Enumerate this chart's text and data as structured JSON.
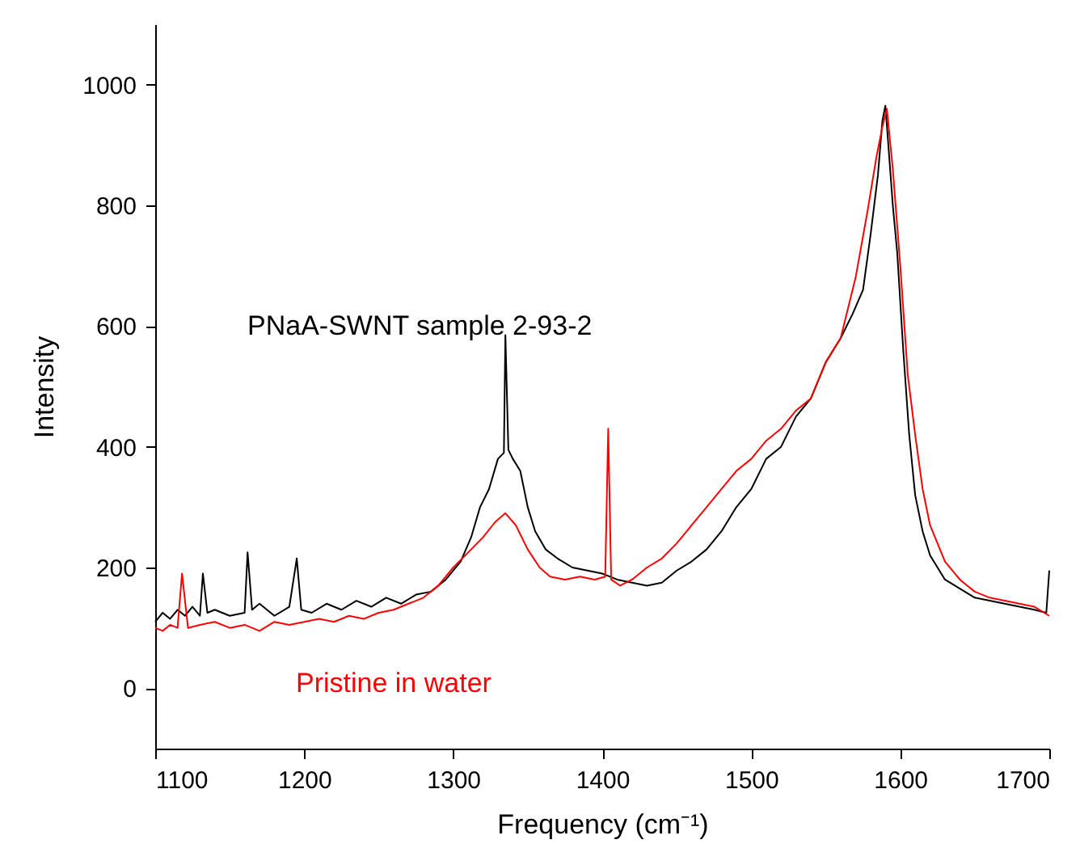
{
  "chart_data": {
    "type": "line",
    "xlabel": "Frequency (cm⁻¹)",
    "ylabel": "Intensity",
    "xlim": [
      1100,
      1700
    ],
    "ylim": [
      -100,
      1100
    ],
    "xticks": [
      1100,
      1200,
      1300,
      1400,
      1500,
      1600,
      1700
    ],
    "yticks": [
      0,
      200,
      400,
      600,
      800,
      1000
    ],
    "grid": false,
    "marker": "none",
    "line_style": "solid",
    "series": [
      {
        "color": "#000000",
        "x": [
          1100,
          1105,
          1110,
          1115,
          1120,
          1125,
          1130,
          1132,
          1135,
          1140,
          1150,
          1160,
          1162,
          1165,
          1170,
          1180,
          1190,
          1195,
          1198,
          1205,
          1215,
          1225,
          1235,
          1245,
          1255,
          1265,
          1275,
          1285,
          1295,
          1305,
          1312,
          1318,
          1324,
          1330,
          1334,
          1335,
          1337,
          1340,
          1345,
          1350,
          1355,
          1362,
          1370,
          1380,
          1390,
          1400,
          1410,
          1420,
          1430,
          1440,
          1450,
          1460,
          1470,
          1480,
          1490,
          1500,
          1510,
          1520,
          1530,
          1540,
          1550,
          1560,
          1568,
          1575,
          1580,
          1585,
          1588,
          1590,
          1592,
          1595,
          1598,
          1602,
          1606,
          1610,
          1615,
          1620,
          1625,
          1630,
          1640,
          1650,
          1660,
          1670,
          1680,
          1690,
          1698,
          1700
        ],
        "values": [
          110,
          125,
          115,
          130,
          120,
          135,
          120,
          190,
          125,
          130,
          120,
          125,
          225,
          130,
          140,
          120,
          135,
          215,
          130,
          125,
          140,
          130,
          145,
          135,
          150,
          140,
          155,
          160,
          180,
          210,
          250,
          300,
          330,
          380,
          390,
          585,
          395,
          380,
          360,
          300,
          260,
          230,
          215,
          200,
          195,
          190,
          180,
          175,
          170,
          175,
          195,
          210,
          230,
          260,
          300,
          330,
          380,
          400,
          450,
          480,
          540,
          580,
          620,
          660,
          750,
          850,
          940,
          965,
          900,
          800,
          720,
          560,
          420,
          320,
          260,
          220,
          200,
          180,
          165,
          150,
          145,
          140,
          135,
          130,
          125,
          195
        ]
      },
      {
        "color": "#ff0000",
        "x": [
          1100,
          1105,
          1110,
          1115,
          1118,
          1122,
          1130,
          1140,
          1150,
          1160,
          1170,
          1180,
          1190,
          1200,
          1210,
          1220,
          1230,
          1240,
          1250,
          1260,
          1270,
          1280,
          1290,
          1300,
          1310,
          1320,
          1328,
          1335,
          1342,
          1350,
          1358,
          1365,
          1375,
          1385,
          1395,
          1402,
          1404,
          1406,
          1412,
          1420,
          1430,
          1440,
          1450,
          1460,
          1470,
          1480,
          1490,
          1500,
          1510,
          1520,
          1530,
          1540,
          1550,
          1560,
          1570,
          1578,
          1584,
          1588,
          1591,
          1595,
          1600,
          1605,
          1610,
          1615,
          1620,
          1630,
          1640,
          1650,
          1660,
          1670,
          1680,
          1690,
          1700
        ],
        "values": [
          100,
          95,
          105,
          100,
          190,
          100,
          105,
          110,
          100,
          105,
          95,
          110,
          105,
          110,
          115,
          110,
          120,
          115,
          125,
          130,
          140,
          150,
          170,
          200,
          225,
          250,
          275,
          290,
          270,
          230,
          200,
          185,
          180,
          185,
          180,
          185,
          430,
          180,
          170,
          180,
          200,
          215,
          240,
          270,
          300,
          330,
          360,
          380,
          410,
          430,
          460,
          480,
          540,
          580,
          680,
          790,
          880,
          930,
          960,
          860,
          700,
          520,
          420,
          330,
          270,
          210,
          180,
          160,
          150,
          145,
          140,
          135,
          120
        ]
      }
    ],
    "annotations": [
      "PNaA-SWNT sample 2-93-2",
      "Pristine in water"
    ]
  }
}
